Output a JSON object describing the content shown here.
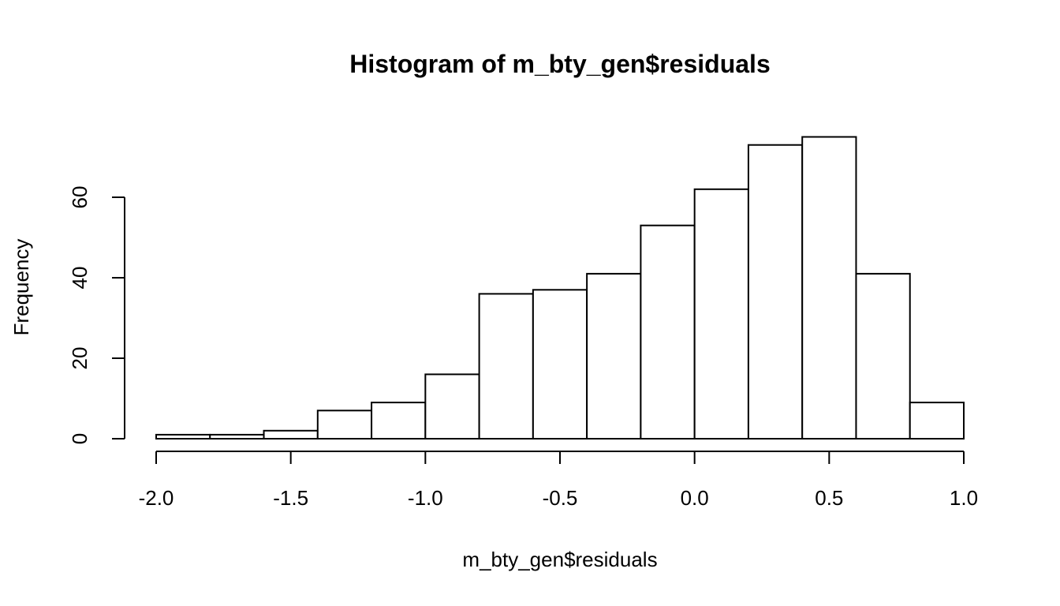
{
  "chart_data": {
    "type": "bar",
    "title": "Histogram of m_bty_gen$residuals",
    "xlabel": "m_bty_gen$residuals",
    "ylabel": "Frequency",
    "bin_edges": [
      -2.0,
      -1.8,
      -1.6,
      -1.4,
      -1.2,
      -1.0,
      -0.8,
      -0.6,
      -0.4,
      -0.2,
      0.0,
      0.2,
      0.4,
      0.6,
      0.8,
      1.0
    ],
    "values": [
      1,
      1,
      2,
      7,
      9,
      16,
      36,
      37,
      41,
      53,
      62,
      73,
      75,
      41,
      9
    ],
    "xlim": [
      -2.0,
      1.0
    ],
    "ylim": [
      0,
      75
    ],
    "x_ticks": [
      -2.0,
      -1.5,
      -1.0,
      -0.5,
      0.0,
      0.5,
      1.0
    ],
    "x_tick_labels": [
      "-2.0",
      "-1.5",
      "-1.0",
      "-0.5",
      "0.0",
      "0.5",
      "1.0"
    ],
    "y_ticks": [
      0,
      20,
      40,
      60
    ],
    "y_tick_labels": [
      "0",
      "20",
      "40",
      "60"
    ],
    "grid": false,
    "bar_fill": "#ffffff",
    "bar_stroke": "#000000"
  }
}
